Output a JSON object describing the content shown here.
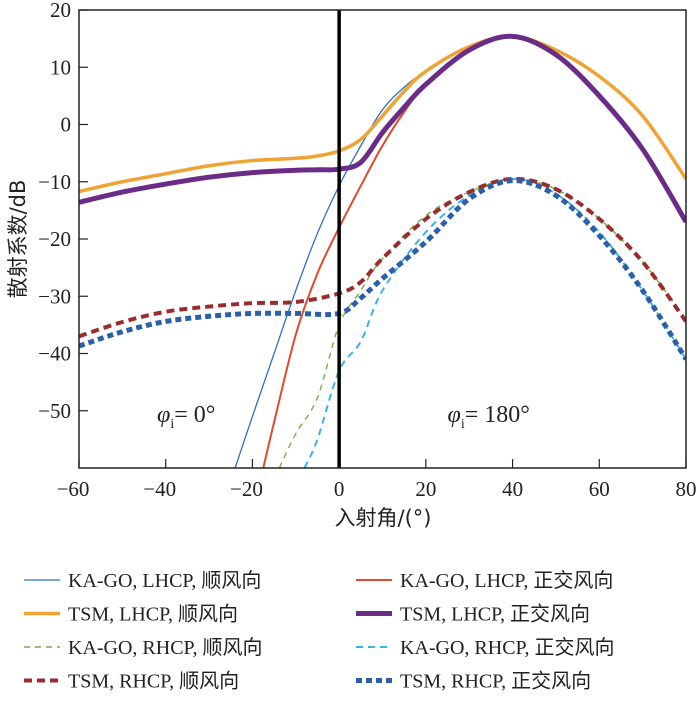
{
  "chart_data": {
    "type": "line",
    "title": "",
    "xlabel": "入射角/(°)",
    "ylabel": "散射系数/dB",
    "xlim": [
      -60,
      80
    ],
    "ylim": [
      -60,
      20
    ],
    "xticks": [
      "−60",
      "−40",
      "−20",
      "0",
      "20",
      "40",
      "60",
      "80"
    ],
    "xtick_values": [
      -60,
      -40,
      -20,
      0,
      20,
      40,
      60,
      80
    ],
    "yticks": [
      "20",
      "10",
      "0",
      "−10",
      "−20",
      "−30",
      "−40",
      "−50"
    ],
    "ytick_values": [
      20,
      10,
      0,
      -10,
      -20,
      -30,
      -40,
      -50
    ],
    "annotations": [
      {
        "text_sym": "φ",
        "text_sub": "i",
        "text_rest": "= 0°",
        "x": -42,
        "y": -52
      },
      {
        "text_sym": "φ",
        "text_sub": "i",
        "text_rest": "= 180°",
        "x": 25,
        "y": -52
      }
    ],
    "divider_x": 0,
    "legend_position": "bottom",
    "series": [
      {
        "name": "KA-GO, LHCP, 顺风向",
        "color": "#2f6fc0",
        "style": "thin",
        "x": [
          -24,
          -20,
          -15,
          -10,
          -5,
          0,
          5,
          10,
          15,
          20,
          30,
          40,
          50,
          60,
          70,
          80
        ],
        "y": [
          -60,
          -51,
          -40,
          -29,
          -19,
          -10.7,
          -3.7,
          2.6,
          6.5,
          9.3,
          13.6,
          15.4,
          13,
          8.4,
          1.5,
          -9.5
        ]
      },
      {
        "name": "KA-GO, LHCP, 正交风向",
        "color": "#e04a2c",
        "style": "solid",
        "x": [
          -17.5,
          -15,
          -10,
          -5,
          0,
          5,
          10,
          15,
          20,
          30,
          40,
          50,
          60,
          70,
          80
        ],
        "y": [
          -60,
          -52,
          -36.7,
          -26,
          -18,
          -10.7,
          -3.7,
          2.2,
          7,
          13,
          15.4,
          12.2,
          5,
          -4.3,
          -17
        ]
      },
      {
        "name": "TSM, LHCP, 顺风向",
        "color": "#f0a232",
        "style": "thick",
        "x": [
          -60,
          -50,
          -40,
          -30,
          -20,
          -10,
          -5,
          0,
          5,
          10,
          15,
          20,
          30,
          40,
          50,
          60,
          70,
          80
        ],
        "y": [
          -11.7,
          -10,
          -8.6,
          -7.2,
          -6.3,
          -5.9,
          -5.5,
          -4.6,
          -2.6,
          1.5,
          5.8,
          9.3,
          13.6,
          15.4,
          13,
          8.4,
          1.5,
          -9.5
        ]
      },
      {
        "name": "TSM, LHCP, 正交风向",
        "color": "#6b2c88",
        "style": "thicker",
        "x": [
          -60,
          -50,
          -40,
          -30,
          -20,
          -10,
          -5,
          0,
          5,
          10,
          15,
          20,
          30,
          40,
          50,
          60,
          70,
          80
        ],
        "y": [
          -13.6,
          -11.8,
          -10.4,
          -9.2,
          -8.4,
          -8,
          -7.9,
          -7.8,
          -6.6,
          -1.4,
          3,
          7,
          13,
          15.4,
          12.2,
          5,
          -4.3,
          -17
        ]
      },
      {
        "name": "KA-GO, RHCP, 顺风向",
        "color": "#70b244",
        "style": "dash-thin",
        "x": [
          -13.8,
          -10,
          -5,
          0,
          5,
          10,
          20,
          30,
          40,
          50,
          60,
          70,
          80
        ],
        "y": [
          -60,
          -54,
          -47.7,
          -35,
          -29,
          -23.4,
          -15.9,
          -11.8,
          -9.5,
          -11.3,
          -16.5,
          -24,
          -34
        ]
      },
      {
        "name": "KA-GO, RHCP, 正交风向",
        "color": "#3cb2e8",
        "style": "dash",
        "x": [
          -8,
          -5,
          0,
          5,
          10,
          20,
          30,
          40,
          50,
          60,
          70,
          80
        ],
        "y": [
          -60,
          -55,
          -43,
          -37.9,
          -29,
          -18.8,
          -12.4,
          -9.5,
          -12.1,
          -18.8,
          -29,
          -41
        ]
      },
      {
        "name": "TSM, RHCP, 顺风向",
        "color": "#9b2c2e",
        "style": "dash-thick",
        "x": [
          -60,
          -50,
          -40,
          -30,
          -20,
          -10,
          0,
          5,
          10,
          20,
          30,
          40,
          50,
          60,
          70,
          80
        ],
        "y": [
          -37,
          -34.5,
          -32.7,
          -31.8,
          -31.2,
          -31,
          -29.5,
          -27.5,
          -23.4,
          -16.5,
          -11.8,
          -9.5,
          -11.3,
          -16.5,
          -24,
          -34.4
        ]
      },
      {
        "name": "TSM, RHCP, 正交风向",
        "color": "#2b5fa8",
        "style": "dot-thick",
        "x": [
          -60,
          -50,
          -40,
          -30,
          -20,
          -10,
          0,
          5,
          10,
          20,
          30,
          40,
          50,
          60,
          70,
          80
        ],
        "y": [
          -38.7,
          -36.2,
          -34.4,
          -33.5,
          -33,
          -33,
          -33,
          -30.3,
          -26.9,
          -20.5,
          -13,
          -9.8,
          -12.4,
          -19.4,
          -29,
          -41
        ]
      }
    ]
  }
}
